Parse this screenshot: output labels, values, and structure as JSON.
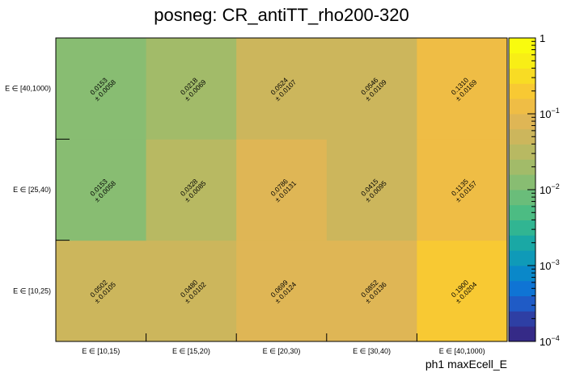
{
  "chart_data": {
    "type": "heatmap",
    "title": "posneg: CR_antiTT_rho200-320",
    "xlabel": "ph1 maxEcell_E",
    "ylabel": "",
    "x_categories": [
      "E ∈ [10,15)",
      "E ∈ [15,20)",
      "E ∈ [20,30)",
      "E ∈ [30,40)",
      "E ∈ [40,1000)"
    ],
    "y_categories": [
      "E ∈ [10,25)",
      "E ∈ [25,40)",
      "E ∈ [40,1000)"
    ],
    "cells": [
      [
        {
          "value": 0.0502,
          "error": 0.0105,
          "label": "0.0502",
          "err_label": "± 0.0105"
        },
        {
          "value": 0.048,
          "error": 0.0102,
          "label": "0.0480",
          "err_label": "± 0.0102"
        },
        {
          "value": 0.0699,
          "error": 0.0124,
          "label": "0.0699",
          "err_label": "± 0.0124"
        },
        {
          "value": 0.0852,
          "error": 0.0136,
          "label": "0.0852",
          "err_label": "± 0.0136"
        },
        {
          "value": 0.19,
          "error": 0.0204,
          "label": "0.1900",
          "err_label": "± 0.0204"
        }
      ],
      [
        {
          "value": 0.0153,
          "error": 0.0058,
          "label": "0.0153",
          "err_label": "± 0.0058"
        },
        {
          "value": 0.0328,
          "error": 0.0085,
          "label": "0.0328",
          "err_label": "± 0.0085"
        },
        {
          "value": 0.0786,
          "error": 0.0131,
          "label": "0.0786",
          "err_label": "± 0.0131"
        },
        {
          "value": 0.0415,
          "error": 0.0095,
          "label": "0.0415",
          "err_label": "± 0.0095"
        },
        {
          "value": 0.1135,
          "error": 0.0157,
          "label": "0.1135",
          "err_label": "± 0.0157"
        }
      ],
      [
        {
          "value": 0.0153,
          "error": 0.0058,
          "label": "0.0153",
          "err_label": "± 0.0058"
        },
        {
          "value": 0.0218,
          "error": 0.0069,
          "label": "0.0218",
          "err_label": "± 0.0069"
        },
        {
          "value": 0.0524,
          "error": 0.0107,
          "label": "0.0524",
          "err_label": "± 0.0107"
        },
        {
          "value": 0.0546,
          "error": 0.0109,
          "label": "0.0546",
          "err_label": "± 0.0109"
        },
        {
          "value": 0.131,
          "error": 0.0169,
          "label": "0.1310",
          "err_label": "± 0.0169"
        }
      ]
    ],
    "zscale": "log",
    "zlim": [
      0.0001,
      1
    ],
    "colorbar_ticks": [
      {
        "value": 1,
        "mantissa": "1",
        "exponent": ""
      },
      {
        "value": 0.1,
        "mantissa": "10",
        "exponent": "−1"
      },
      {
        "value": 0.01,
        "mantissa": "10",
        "exponent": "−2"
      },
      {
        "value": 0.001,
        "mantissa": "10",
        "exponent": "−3"
      },
      {
        "value": 0.0001,
        "mantissa": "10",
        "exponent": "−4"
      }
    ],
    "palette": [
      "#352a87",
      "#2e3fa4",
      "#1f5bc6",
      "#0f74d4",
      "#0a88c9",
      "#0f9ab8",
      "#1aa8a5",
      "#31b592",
      "#4cbc83",
      "#6abd7a",
      "#88bd72",
      "#a2bb69",
      "#b8b962",
      "#ccb65c",
      "#dfb655",
      "#efbd45",
      "#f8c933",
      "#f8dc24",
      "#f8ee16",
      "#f9fb0e"
    ],
    "grid": false,
    "legend": "none"
  }
}
